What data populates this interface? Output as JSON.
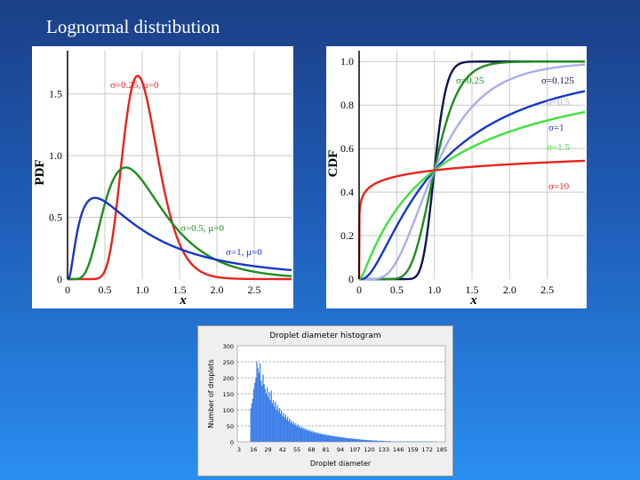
{
  "slide": {
    "title": "Lognormal distribution"
  },
  "colors": {
    "red": "#e8231d",
    "green": "#1f8c1f",
    "blue": "#1736c8",
    "navy": "#0b1550",
    "lavender": "#a9aee6",
    "lime": "#3ee23a",
    "grid": "#c8c8c8",
    "hist": "#3f80e8"
  },
  "chart_data": [
    {
      "type": "line",
      "title": "",
      "xlabel": "x",
      "ylabel": "PDF",
      "xlim": [
        0,
        3
      ],
      "ylim": [
        0,
        1.85
      ],
      "xticks": [
        "0",
        "0.5",
        "1.0",
        "1.5",
        "2.0",
        "2.5"
      ],
      "yticks": [
        "0",
        "0.5",
        "1.0",
        "1.5"
      ],
      "series": [
        {
          "name": "σ=0.25, μ=0",
          "sigma": 0.25,
          "color": "red"
        },
        {
          "name": "σ=0.5, μ=0",
          "sigma": 0.5,
          "color": "green"
        },
        {
          "name": "σ=1, μ=0",
          "sigma": 1,
          "color": "blue"
        }
      ]
    },
    {
      "type": "line",
      "title": "",
      "xlabel": "x",
      "ylabel": "CDF",
      "xlim": [
        0,
        3
      ],
      "ylim": [
        0,
        1.05
      ],
      "xticks": [
        "0",
        "0.5",
        "1.0",
        "1.5",
        "2.0",
        "2.5"
      ],
      "yticks": [
        "0",
        "0.2",
        "0.4",
        "0.6",
        "0.8",
        "1.0"
      ],
      "series": [
        {
          "name": "σ=0.125",
          "sigma": 0.125,
          "color": "navy"
        },
        {
          "name": "σ=0.25",
          "sigma": 0.25,
          "color": "green"
        },
        {
          "name": "σ=0.5",
          "sigma": 0.5,
          "color": "lavender"
        },
        {
          "name": "σ=1",
          "sigma": 1,
          "color": "blue"
        },
        {
          "name": "σ=1.5",
          "sigma": 1.5,
          "color": "lime"
        },
        {
          "name": "σ=10",
          "sigma": 10,
          "color": "red"
        }
      ]
    },
    {
      "type": "bar",
      "title": "Droplet diameter histogram",
      "xlabel": "Droplet diameter",
      "ylabel": "Number of droplets",
      "ylim": [
        0,
        300
      ],
      "yticks": [
        "0",
        "50",
        "100",
        "150",
        "200",
        "250",
        "300"
      ],
      "xticks": [
        "3",
        "16",
        "29",
        "42",
        "55",
        "68",
        "81",
        "94",
        "107",
        "120",
        "133",
        "146",
        "159",
        "172",
        "185"
      ],
      "xlim": [
        3,
        185
      ],
      "values": [
        105,
        120,
        135,
        165,
        185,
        200,
        250,
        230,
        215,
        245,
        190,
        175,
        210,
        180,
        165,
        150,
        170,
        140,
        155,
        130,
        160,
        120,
        130,
        110,
        125,
        100,
        115,
        95,
        105,
        88,
        98,
        80,
        90,
        76,
        84,
        70,
        78,
        64,
        72,
        60,
        66,
        55,
        62,
        52,
        58,
        48,
        54,
        45,
        50,
        42,
        47,
        40,
        44,
        37,
        41,
        35,
        38,
        33,
        36,
        31,
        34,
        29,
        32,
        28,
        30,
        26,
        28,
        25,
        27,
        23,
        25,
        22,
        24,
        21,
        22,
        20,
        21,
        19,
        20,
        18,
        19,
        17,
        18,
        16,
        17,
        15,
        16,
        14,
        15,
        14,
        14,
        13,
        13,
        12,
        12,
        11,
        11,
        10,
        11,
        10,
        10,
        9,
        9,
        9,
        8,
        8,
        8,
        7,
        7,
        7,
        6,
        6,
        6,
        6,
        5,
        5,
        5,
        5,
        5,
        4,
        4,
        4,
        4,
        4,
        3,
        3,
        3,
        3,
        3,
        3,
        2,
        2,
        2,
        2,
        2,
        2,
        2,
        2,
        1,
        1,
        1,
        1,
        1,
        1,
        1,
        1,
        1,
        1,
        1,
        1,
        1,
        1,
        1,
        1,
        1,
        1,
        1,
        1,
        1,
        1,
        1,
        1,
        1,
        1,
        1,
        1,
        1,
        1,
        1,
        1,
        1,
        1,
        1,
        1,
        1,
        1,
        1,
        1,
        1,
        1,
        1,
        1
      ]
    }
  ]
}
